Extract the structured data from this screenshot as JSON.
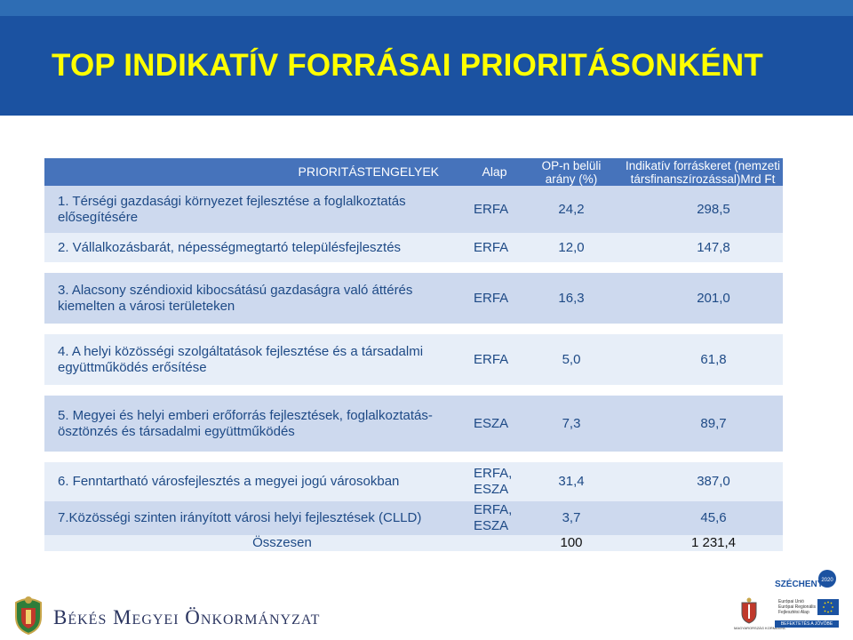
{
  "title": "TOP INDIKATÍV FORRÁSAI PRIORITÁSONKÉNT",
  "table": {
    "headers": {
      "priorities": "PRIORITÁSTENGELYEK",
      "alap": "Alap",
      "op_line1": "OP-n belüli",
      "op_line2": "arány (%)",
      "ind_line1": "Indikatív forráskeret (nemzeti",
      "ind_line2": "társfinanszírozással)Mrd Ft"
    },
    "rows": [
      {
        "priority": "1. Térségi gazdasági környezet fejlesztése a foglalkoztatás elősegítésére",
        "alap": "ERFA",
        "op": "24,2",
        "ind": "298,5"
      },
      {
        "priority": "2. Vállalkozásbarát, népességmegtartó településfejlesztés",
        "alap": "ERFA",
        "op": "12,0",
        "ind": "147,8"
      },
      {
        "priority": "3. Alacsony széndioxid kibocsátású gazdaságra való áttérés kiemelten a városi területeken",
        "alap": "ERFA",
        "op": "16,3",
        "ind": "201,0"
      },
      {
        "priority": "4. A helyi közösségi szolgáltatások  fejlesztése és a társadalmi együttműködés erősítése",
        "alap": "ERFA",
        "op": "5,0",
        "ind": "61,8"
      },
      {
        "priority": "5. Megyei és helyi emberi erőforrás fejlesztések, foglalkoztatás-ösztönzés  és társadalmi együttműködés",
        "alap": "ESZA",
        "op": "7,3",
        "ind": "89,7"
      },
      {
        "priority": "6. Fenntartható  városfejlesztés a megyei jogú városokban",
        "alap": "ERFA, ESZA",
        "op": "31,4",
        "ind": "387,0"
      },
      {
        "priority": "7.Közösségi szinten irányított városi helyi fejlesztések (CLLD)",
        "alap": "ERFA, ESZA",
        "op": "3,7",
        "ind": "45,6"
      }
    ],
    "total": {
      "label": "Összesen",
      "op": "100",
      "ind": "1 231,4"
    }
  },
  "footer": {
    "org_name": "Békés Megyei Önkormányzat",
    "szechenyi": "SZÉCHENYI",
    "szechenyi_badge": "2020",
    "eu_text_1": "Európai Unió",
    "eu_text_2": "Európai Regionális",
    "eu_text_3": "Fejlesztési Alap",
    "eu_strip": "BEFEKTETÉS A JÖVŐBE",
    "hu_label": "MAGYARORSZÁG KORMÁNYA"
  },
  "colors": {
    "title_bg": "#1b52a1",
    "title_text": "#ffff00",
    "header_bg": "#4673bb",
    "row_dark": "#cdd9ee",
    "row_light": "#e7eef8",
    "cell_text": "#1e4a86"
  },
  "icons": [
    "crest-icon",
    "szechenyi-badge-icon",
    "eu-flag-icon",
    "hungary-crest-icon"
  ]
}
